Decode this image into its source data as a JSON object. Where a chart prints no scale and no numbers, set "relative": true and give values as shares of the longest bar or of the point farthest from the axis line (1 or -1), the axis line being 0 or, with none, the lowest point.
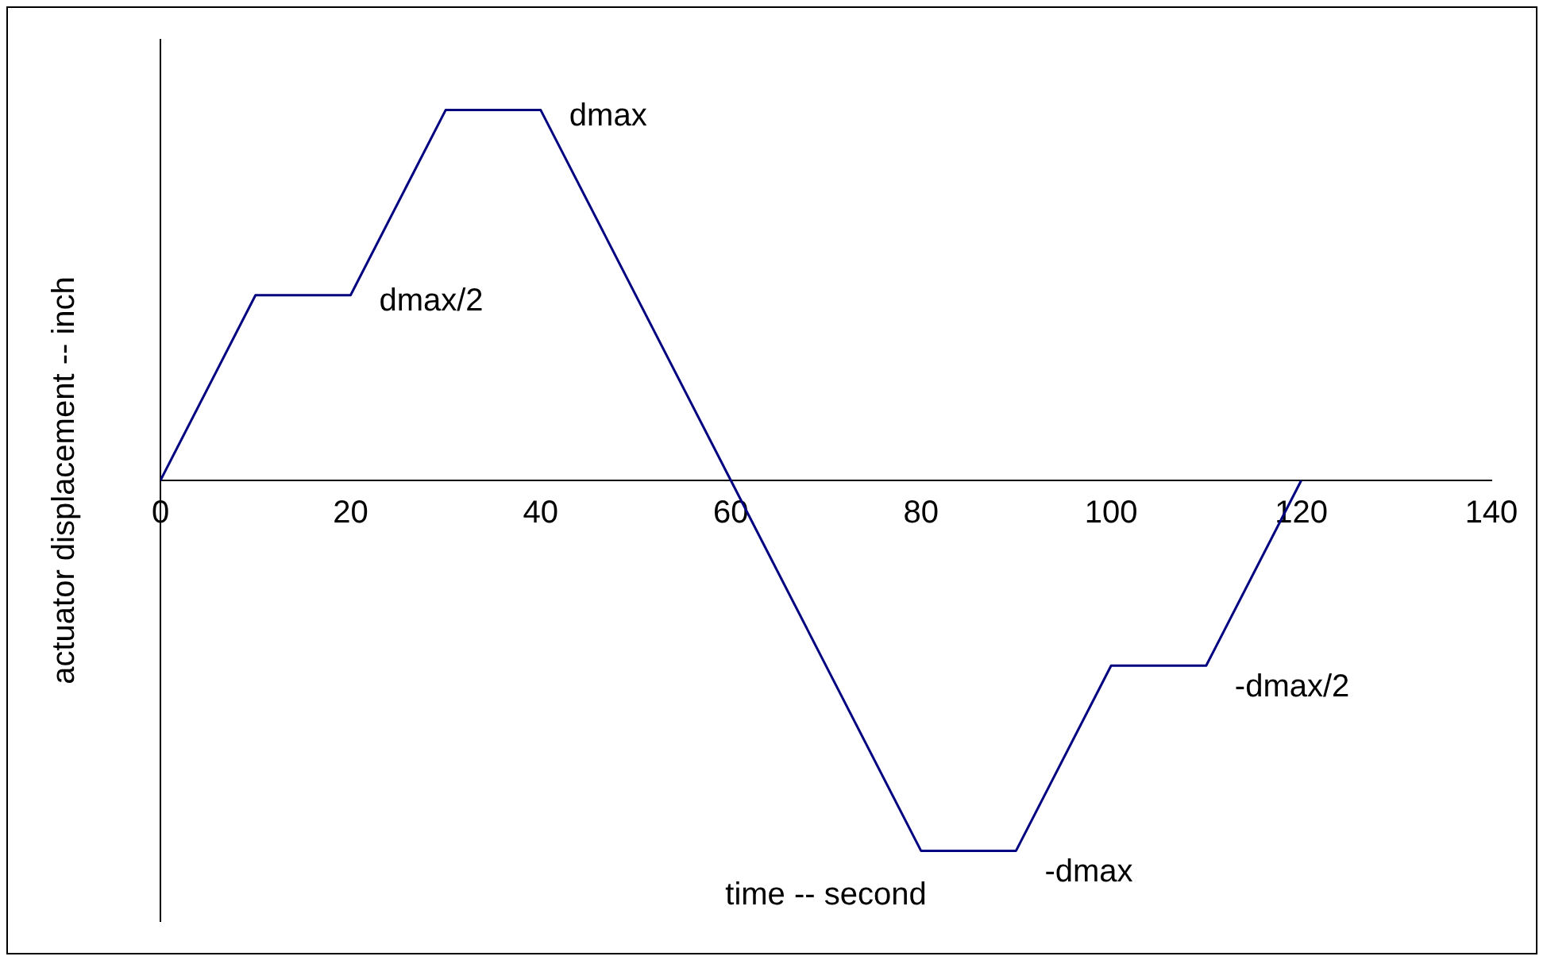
{
  "chart_data": {
    "type": "line",
    "relative": true,
    "xlabel": "time -- second",
    "ylabel": "actuator displacement -- inch",
    "x": [
      0,
      10,
      20,
      30,
      40,
      60,
      80,
      90,
      100,
      110,
      120
    ],
    "series": [
      {
        "color": "#000080",
        "values": [
          0,
          0.5,
          0.5,
          1,
          1,
          0,
          -1,
          -1,
          -0.5,
          -0.5,
          0
        ]
      }
    ],
    "xlim": [
      0,
      140
    ],
    "xticks": [
      0,
      20,
      40,
      60,
      80,
      100,
      120,
      140
    ],
    "annotations": [
      {
        "text": "dmax",
        "x": 40,
        "y": 1
      },
      {
        "text": "dmax/2",
        "x": 20,
        "y": 0.5
      },
      {
        "text": "-dmax",
        "x": 90,
        "y": -1
      },
      {
        "text": "-dmax/2",
        "x": 110,
        "y": -0.5
      }
    ],
    "grid": false,
    "legend": false,
    "marker": "none",
    "line_style": "solid"
  }
}
